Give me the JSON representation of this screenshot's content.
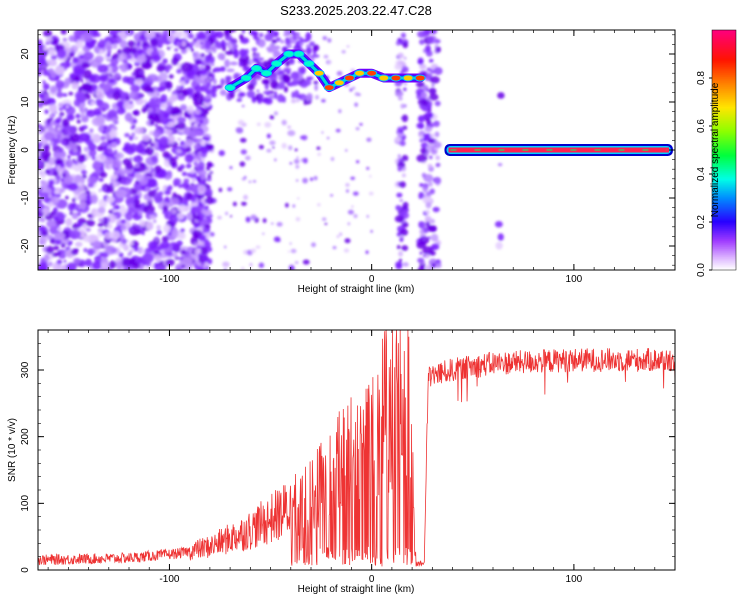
{
  "title": "S233.2025.203.22.47.C28",
  "chart_data": [
    {
      "type": "heatmap",
      "xlabel": "Height of straight line (km)",
      "ylabel": "Frequency (Hz)",
      "xlim": [
        -165,
        150
      ],
      "ylim": [
        -25,
        25
      ],
      "x_ticks": [
        -100,
        0,
        100
      ],
      "y_ticks": [
        -20,
        -10,
        0,
        10,
        20
      ],
      "colorbar": {
        "label": "Normalized spectral amplitude",
        "range": [
          0,
          1
        ],
        "ticks": [
          0.0,
          0.2,
          0.4,
          0.6,
          0.8
        ],
        "colors": [
          "#ffffff",
          "#d9b3ff",
          "#8000ff",
          "#0000ff",
          "#00ffff",
          "#00ff00",
          "#ffff00",
          "#ff8000",
          "#ff0000",
          "#ff0080"
        ]
      },
      "ridge": [
        {
          "x": -70,
          "y": 13
        },
        {
          "x": -62,
          "y": 15
        },
        {
          "x": -57,
          "y": 17
        },
        {
          "x": -52,
          "y": 16
        },
        {
          "x": -47,
          "y": 18
        },
        {
          "x": -41,
          "y": 20
        },
        {
          "x": -36,
          "y": 20
        },
        {
          "x": -31,
          "y": 18
        },
        {
          "x": -26,
          "y": 16
        },
        {
          "x": -21,
          "y": 13
        },
        {
          "x": -16,
          "y": 14
        },
        {
          "x": -11,
          "y": 15
        },
        {
          "x": -6,
          "y": 16
        },
        {
          "x": 0,
          "y": 16
        },
        {
          "x": 6,
          "y": 15
        },
        {
          "x": 12,
          "y": 15
        },
        {
          "x": 18,
          "y": 15
        },
        {
          "x": 24,
          "y": 15
        }
      ],
      "carrier": {
        "x_start": 37,
        "x_end": 148,
        "y": 0
      }
    },
    {
      "type": "line",
      "xlabel": "Height of straight line (km)",
      "ylabel": "SNR (10 * v/v)",
      "xlim": [
        -165,
        150
      ],
      "ylim": [
        0,
        360
      ],
      "x_ticks": [
        -100,
        0,
        100
      ],
      "y_ticks": [
        0,
        100,
        200,
        300
      ],
      "color": "#ee3333",
      "profile": [
        {
          "x": -165,
          "y": 15
        },
        {
          "x": -120,
          "y": 18
        },
        {
          "x": -95,
          "y": 25
        },
        {
          "x": -80,
          "y": 35
        },
        {
          "x": -60,
          "y": 60
        },
        {
          "x": -45,
          "y": 85
        },
        {
          "x": -30,
          "y": 110
        },
        {
          "x": -20,
          "y": 150
        },
        {
          "x": -10,
          "y": 180
        },
        {
          "x": 0,
          "y": 220
        },
        {
          "x": 10,
          "y": 245
        },
        {
          "x": 18,
          "y": 270
        },
        {
          "x": 22,
          "y": 10
        },
        {
          "x": 26,
          "y": 10
        },
        {
          "x": 28,
          "y": 290
        },
        {
          "x": 40,
          "y": 300
        },
        {
          "x": 60,
          "y": 310
        },
        {
          "x": 100,
          "y": 315
        },
        {
          "x": 150,
          "y": 315
        }
      ]
    }
  ]
}
